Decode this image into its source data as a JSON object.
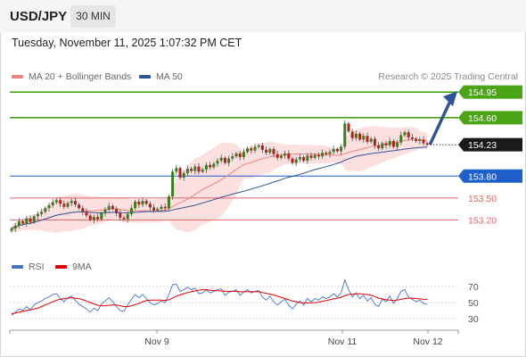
{
  "header": {
    "symbol": "USD/JPY",
    "timeframe": "30 MIN"
  },
  "datetime": "Tuesday, November 11, 2025 1:07:32 PM CET",
  "legend": {
    "ma20": "MA 20 + Bollinger Bands",
    "ma50": "MA 50",
    "rsi": "RSI",
    "rsi_ma": "9MA"
  },
  "credit": "Research © 2025 Trading Central",
  "colors": {
    "ma20": "#f08080",
    "ma50": "#2f5597",
    "bollinger_fill": "#fbd5d5",
    "resistance": "#4aa415",
    "support": "#1f5fc8",
    "secondary_support": "#e06666",
    "current_price": "#1a1a1a",
    "forecast_arrow": "#2f5597",
    "rsi": "#4472c4",
    "rsi_ma": "#e00000",
    "candle_up": "#3a7d1e",
    "candle_down": "#b81e1e"
  },
  "chart_data": [
    {
      "type": "candlestick",
      "x_tick_labels": [
        "Nov 9",
        "Nov 11",
        "Nov 12"
      ],
      "ylim": [
        152.85,
        155.05
      ],
      "levels": [
        {
          "label": "154.95",
          "value": 154.95,
          "kind": "resistance"
        },
        {
          "label": "154.60",
          "value": 154.6,
          "kind": "resistance"
        },
        {
          "label": "154.23",
          "value": 154.23,
          "kind": "current"
        },
        {
          "label": "153.80",
          "value": 153.8,
          "kind": "support"
        },
        {
          "label": "153.50",
          "value": 153.5,
          "kind": "secondary_support"
        },
        {
          "label": "153.20",
          "value": 153.2,
          "kind": "secondary_support"
        }
      ],
      "close": [
        153.08,
        153.12,
        153.18,
        153.15,
        153.22,
        153.17,
        153.25,
        153.28,
        153.31,
        153.36,
        153.4,
        153.44,
        153.47,
        153.42,
        153.38,
        153.43,
        153.46,
        153.41,
        153.36,
        153.31,
        153.26,
        153.2,
        153.24,
        153.21,
        153.29,
        153.34,
        153.39,
        153.35,
        153.29,
        153.23,
        153.21,
        153.28,
        153.36,
        153.45,
        153.41,
        153.46,
        153.42,
        153.37,
        153.33,
        153.35,
        153.38,
        153.36,
        153.52,
        153.86,
        153.91,
        153.78,
        153.84,
        153.9,
        153.87,
        153.93,
        153.86,
        153.89,
        153.95,
        153.92,
        153.97,
        154.01,
        154.05,
        153.98,
        154.04,
        154.07,
        154.11,
        154.06,
        154.13,
        154.18,
        154.15,
        154.2,
        154.22,
        154.16,
        154.12,
        154.17,
        154.1,
        154.05,
        154.08,
        154.11,
        154.04,
        153.98,
        154.03,
        154.06,
        154.01,
        154.08,
        154.05,
        154.09,
        154.07,
        154.12,
        154.1,
        154.13,
        154.17,
        154.14,
        154.2,
        154.52,
        154.41,
        154.32,
        154.38,
        154.3,
        154.35,
        154.27,
        154.31,
        154.22,
        154.18,
        154.25,
        154.22,
        154.28,
        154.2,
        154.26,
        154.36,
        154.4,
        154.33,
        154.31,
        154.28,
        154.3,
        154.25,
        154.23
      ],
      "rsi": {
        "ylim": [
          20,
          80
        ],
        "tick_labels": [
          "70",
          "50",
          "30"
        ],
        "tick_values": [
          70,
          50,
          30
        ],
        "values": [
          34,
          38,
          42,
          40,
          45,
          41,
          47,
          50,
          52,
          55,
          57,
          60,
          61,
          55,
          51,
          56,
          58,
          53,
          48,
          45,
          42,
          38,
          43,
          40,
          48,
          52,
          56,
          51,
          45,
          40,
          39,
          47,
          54,
          60,
          56,
          60,
          55,
          50,
          47,
          49,
          52,
          50,
          60,
          72,
          73,
          64,
          66,
          69,
          66,
          68,
          61,
          62,
          66,
          62,
          64,
          66,
          67,
          59,
          63,
          64,
          66,
          59,
          63,
          66,
          62,
          64,
          65,
          57,
          53,
          58,
          51,
          47,
          51,
          54,
          47,
          42,
          48,
          52,
          47,
          55,
          51,
          55,
          53,
          57,
          55,
          57,
          61,
          57,
          62,
          78,
          66,
          57,
          62,
          55,
          59,
          52,
          56,
          48,
          45,
          54,
          51,
          58,
          49,
          55,
          64,
          66,
          57,
          54,
          51,
          53,
          49,
          48
        ],
        "ma_values": [
          36,
          37,
          38,
          39,
          40,
          41,
          42,
          43,
          45,
          47,
          49,
          51,
          53,
          54,
          55,
          55.5,
          56,
          55.5,
          55,
          53.5,
          52,
          50,
          48.5,
          46.5,
          46,
          46,
          46.5,
          47,
          47,
          46,
          45,
          45,
          46,
          47.5,
          49,
          51,
          52.5,
          53,
          53,
          53,
          53,
          52.5,
          53.5,
          55.5,
          58,
          59.5,
          61,
          62.5,
          63.5,
          64.5,
          65.5,
          66,
          66,
          65.5,
          65,
          64.5,
          64.5,
          64,
          64,
          64,
          64,
          63.5,
          63.5,
          63.5,
          63.5,
          63.5,
          63.5,
          62.5,
          61.5,
          60.5,
          59.5,
          58,
          56.5,
          55,
          53.5,
          52,
          51,
          50,
          49.5,
          49.5,
          49.5,
          50,
          50.5,
          51.5,
          52.5,
          53.5,
          54.5,
          55.5,
          56.5,
          58.5,
          60,
          60.5,
          61,
          61,
          60.5,
          60,
          59,
          57.5,
          55.5,
          54.5,
          53.5,
          53,
          52.5,
          53,
          54,
          55,
          55.5,
          55.5,
          55,
          54.5,
          54,
          54
        ]
      }
    }
  ]
}
